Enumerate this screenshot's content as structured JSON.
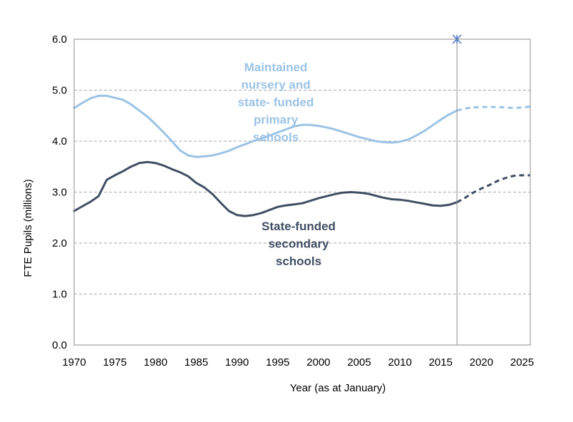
{
  "chart_data": {
    "type": "line",
    "title": "",
    "xlabel": "Year (as at January)",
    "ylabel": "FTE Pupils (millions)",
    "xlim": [
      1970,
      2026
    ],
    "ylim": [
      0,
      6
    ],
    "x_ticks": [
      "1970",
      "1975",
      "1980",
      "1985",
      "1990",
      "1995",
      "2000",
      "2005",
      "2010",
      "2015",
      "2020",
      "2025"
    ],
    "y_ticks": [
      "0.0",
      "1.0",
      "2.0",
      "3.0",
      "4.0",
      "5.0",
      "6.0"
    ],
    "grid": "horizontal dashed",
    "legend": "inline labels",
    "actual_end_year": 2017,
    "colors": {
      "primary": "#9cc3e5",
      "secondary": "#404e64",
      "marker": "#4472c4",
      "grid": "#a6a6a6"
    },
    "series": [
      {
        "name": "Maintained nursery and state- funded primary schools",
        "label_lines": [
          "Maintained",
          "nursery and",
          "state- funded",
          "primary",
          "schools"
        ],
        "x": [
          1970,
          1971,
          1972,
          1973,
          1974,
          1975,
          1976,
          1977,
          1978,
          1979,
          1980,
          1981,
          1982,
          1983,
          1984,
          1985,
          1986,
          1987,
          1988,
          1989,
          1990,
          1991,
          1992,
          1993,
          1994,
          1995,
          1996,
          1997,
          1998,
          1999,
          2000,
          2001,
          2002,
          2003,
          2004,
          2005,
          2006,
          2007,
          2008,
          2009,
          2010,
          2011,
          2012,
          2013,
          2014,
          2015,
          2016,
          2017,
          2018,
          2019,
          2020,
          2021,
          2022,
          2023,
          2024,
          2025,
          2026
        ],
        "values": [
          4.65,
          4.75,
          4.84,
          4.89,
          4.89,
          4.85,
          4.81,
          4.72,
          4.6,
          4.48,
          4.33,
          4.17,
          4.0,
          3.82,
          3.72,
          3.69,
          3.7,
          3.72,
          3.76,
          3.81,
          3.88,
          3.94,
          4.0,
          4.05,
          4.11,
          4.17,
          4.23,
          4.29,
          4.32,
          4.32,
          4.3,
          4.27,
          4.23,
          4.18,
          4.13,
          4.08,
          4.04,
          4.0,
          3.98,
          3.97,
          3.99,
          4.03,
          4.11,
          4.2,
          4.31,
          4.42,
          4.52,
          4.6,
          4.64,
          4.66,
          4.67,
          4.67,
          4.67,
          4.66,
          4.65,
          4.66,
          4.68
        ]
      },
      {
        "name": "State-funded secondary schools",
        "label_lines": [
          "State-funded",
          "secondary",
          "schools"
        ],
        "x": [
          1970,
          1971,
          1972,
          1973,
          1974,
          1975,
          1976,
          1977,
          1978,
          1979,
          1980,
          1981,
          1982,
          1983,
          1984,
          1985,
          1986,
          1987,
          1988,
          1989,
          1990,
          1991,
          1992,
          1993,
          1994,
          1995,
          1996,
          1997,
          1998,
          1999,
          2000,
          2001,
          2002,
          2003,
          2004,
          2005,
          2006,
          2007,
          2008,
          2009,
          2010,
          2011,
          2012,
          2013,
          2014,
          2015,
          2016,
          2017,
          2018,
          2019,
          2020,
          2021,
          2022,
          2023,
          2024,
          2025,
          2026
        ],
        "values": [
          2.63,
          2.72,
          2.81,
          2.92,
          3.24,
          3.33,
          3.41,
          3.5,
          3.57,
          3.59,
          3.57,
          3.52,
          3.45,
          3.39,
          3.31,
          3.18,
          3.09,
          2.96,
          2.79,
          2.63,
          2.55,
          2.53,
          2.55,
          2.59,
          2.65,
          2.71,
          2.74,
          2.76,
          2.78,
          2.83,
          2.88,
          2.92,
          2.96,
          2.99,
          3.0,
          2.99,
          2.97,
          2.93,
          2.89,
          2.86,
          2.85,
          2.83,
          2.8,
          2.77,
          2.74,
          2.73,
          2.75,
          2.8,
          2.89,
          2.99,
          3.07,
          3.14,
          3.22,
          3.28,
          3.32,
          3.33,
          3.33
        ]
      }
    ]
  }
}
